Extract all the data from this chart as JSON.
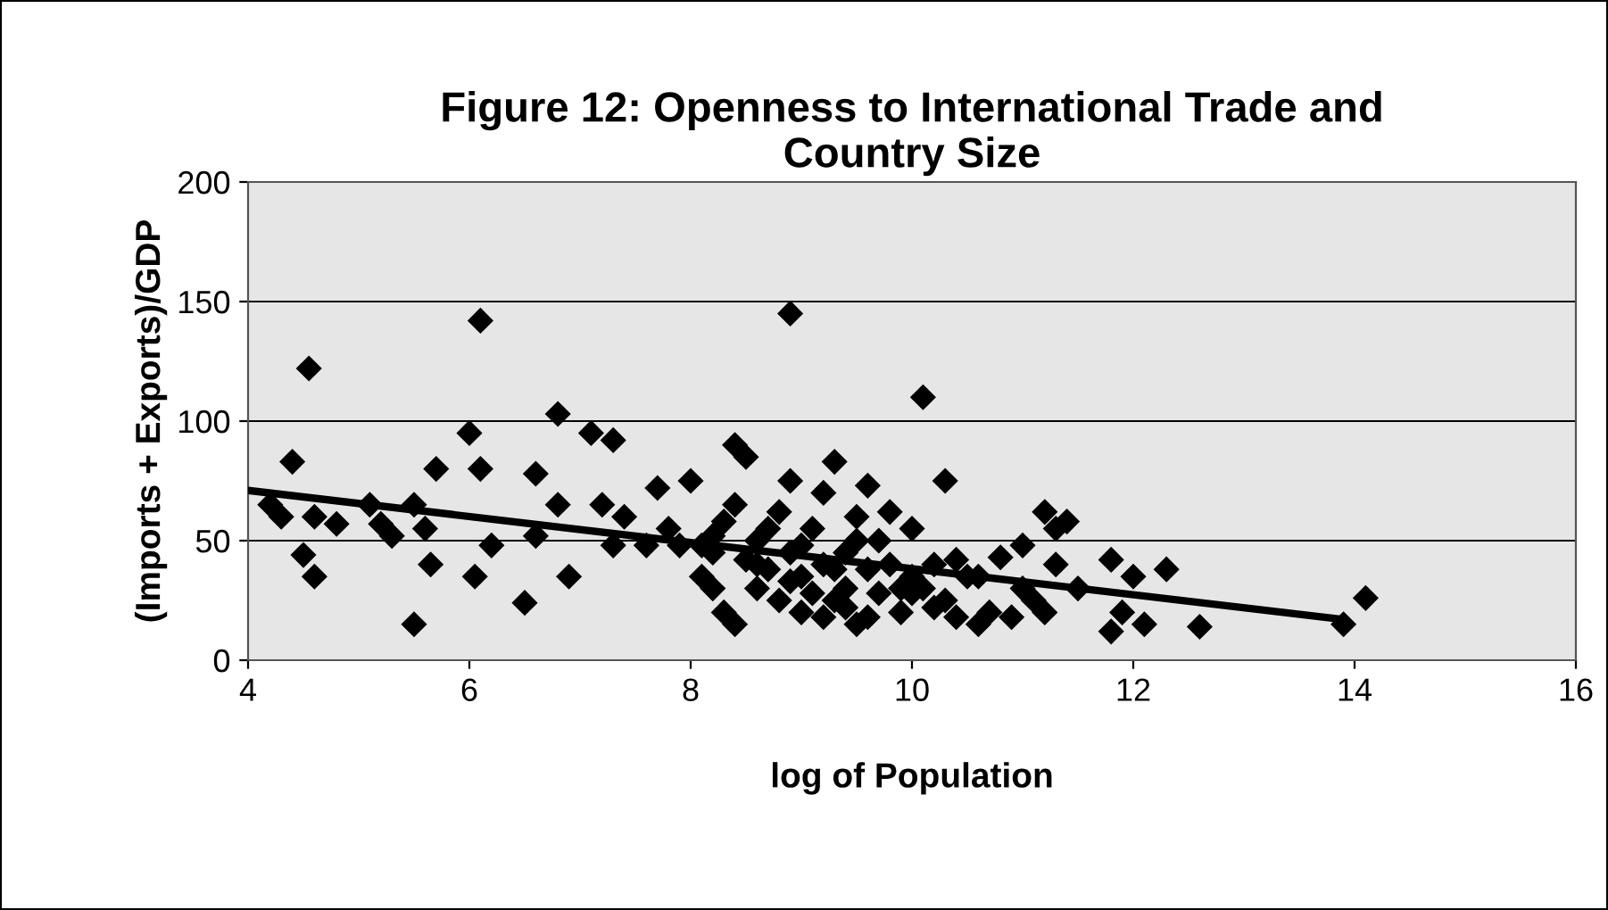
{
  "chart_data": {
    "type": "scatter",
    "title": "Figure 12: Openness to International Trade and\nCountry Size",
    "xlabel": "log of Population",
    "ylabel": "(Imports + Exports)/GDP",
    "xlim": [
      4,
      16
    ],
    "xticks": [
      4,
      6,
      8,
      10,
      12,
      14,
      16
    ],
    "ylim": [
      0,
      200
    ],
    "yticks": [
      0,
      50,
      100,
      150,
      200
    ],
    "grid": "y",
    "legend": false,
    "series": [
      {
        "marker": "diamond",
        "color": "#000000",
        "x": [
          4.3,
          4.2,
          4.4,
          4.5,
          4.55,
          4.6,
          4.6,
          4.8,
          5.1,
          5.2,
          5.3,
          5.5,
          5.5,
          5.6,
          5.65,
          5.7,
          6.0,
          6.05,
          6.1,
          6.1,
          6.2,
          6.5,
          6.6,
          6.6,
          6.8,
          6.8,
          6.9,
          7.1,
          7.2,
          7.3,
          7.3,
          7.4,
          7.6,
          7.7,
          7.8,
          7.9,
          8.0,
          8.1,
          8.1,
          8.2,
          8.2,
          8.3,
          8.4,
          8.4,
          8.4,
          8.5,
          8.5,
          8.6,
          8.6,
          8.7,
          8.8,
          8.9,
          8.9,
          8.9,
          9.0,
          9.0,
          9.1,
          9.1,
          9.2,
          9.2,
          9.3,
          9.3,
          9.4,
          9.4,
          9.5,
          9.5,
          9.6,
          9.6,
          9.7,
          9.8,
          9.9,
          9.9,
          10.0,
          10.0,
          10.1,
          10.2,
          10.3,
          10.3,
          10.4,
          10.5,
          10.6,
          10.7,
          10.8,
          10.9,
          11.0,
          11.1,
          11.2,
          11.3,
          11.3,
          11.4,
          11.5,
          11.8,
          11.8,
          11.9,
          12.0,
          12.1,
          12.3,
          12.6,
          13.9,
          14.1,
          8.7,
          8.8,
          9.0,
          9.2,
          9.3,
          9.5,
          9.7,
          9.8,
          10.1,
          10.2,
          10.4,
          11.0,
          11.2,
          8.6,
          8.9,
          9.4,
          9.6,
          10.0,
          10.6,
          8.3,
          8.2
        ],
        "values": [
          60,
          65,
          83,
          44,
          122,
          35,
          60,
          57,
          65,
          57,
          52,
          15,
          65,
          55,
          40,
          80,
          95,
          35,
          142,
          80,
          48,
          24,
          78,
          52,
          103,
          65,
          35,
          95,
          65,
          92,
          48,
          60,
          48,
          72,
          55,
          48,
          75,
          48,
          35,
          30,
          52,
          20,
          15,
          65,
          90,
          85,
          42,
          50,
          30,
          38,
          62,
          45,
          145,
          75,
          20,
          35,
          55,
          28,
          40,
          70,
          83,
          25,
          45,
          30,
          15,
          60,
          73,
          38,
          50,
          62,
          30,
          20,
          55,
          35,
          110,
          40,
          25,
          75,
          18,
          35,
          15,
          20,
          43,
          18,
          48,
          25,
          62,
          40,
          55,
          58,
          30,
          12,
          42,
          20,
          35,
          15,
          38,
          14,
          15,
          26,
          55,
          25,
          48,
          18,
          38,
          50,
          28,
          40,
          30,
          22,
          42,
          30,
          20,
          40,
          33,
          22,
          18,
          28,
          35,
          58,
          45
        ]
      },
      {
        "type": "line",
        "color": "#000000",
        "x": [
          4,
          13.9
        ],
        "values": [
          71,
          17
        ]
      }
    ]
  }
}
